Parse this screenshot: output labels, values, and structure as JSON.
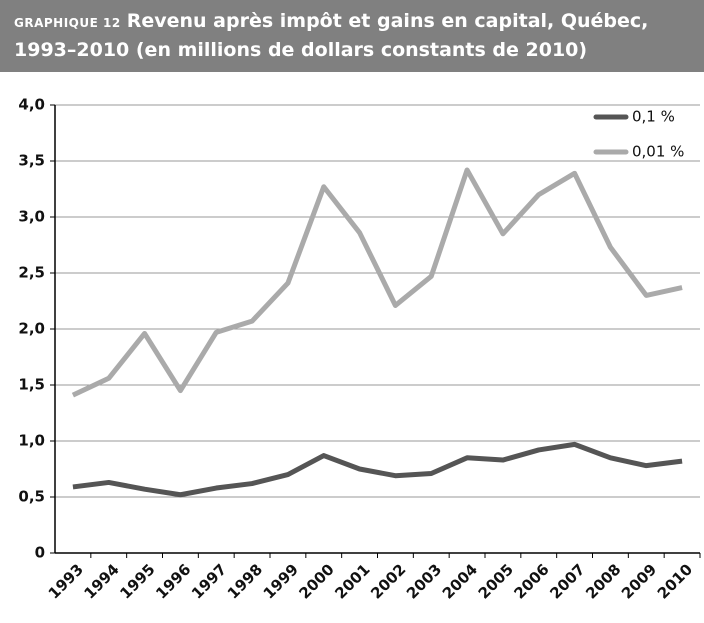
{
  "chart_data": {
    "type": "line",
    "label": "GRAPHIQUE 12",
    "title": "Revenu après impôt et gains en capital, Québec, 1993–2010 (en millions de dollars constants de 2010)",
    "categories": [
      "1993",
      "1994",
      "1995",
      "1996",
      "1997",
      "1998",
      "1999",
      "2000",
      "2001",
      "2002",
      "2003",
      "2004",
      "2005",
      "2006",
      "2007",
      "2008",
      "2009",
      "2010"
    ],
    "series": [
      {
        "name": "0,1 %",
        "color": "#555555",
        "values": [
          0.59,
          0.63,
          0.57,
          0.52,
          0.58,
          0.62,
          0.7,
          0.87,
          0.75,
          0.69,
          0.71,
          0.85,
          0.83,
          0.92,
          0.97,
          0.85,
          0.78,
          0.82
        ]
      },
      {
        "name": "0,01 %",
        "color": "#aaaaaa",
        "values": [
          1.41,
          1.56,
          1.96,
          1.45,
          1.97,
          2.07,
          2.41,
          3.27,
          2.86,
          2.21,
          2.47,
          3.42,
          2.85,
          3.2,
          3.39,
          2.73,
          2.3,
          2.37
        ]
      }
    ],
    "ylim": [
      0,
      4
    ],
    "yticks": [
      0,
      {
        "value": 0.5,
        "label": "0,5"
      },
      {
        "value": 1,
        "label": "1,0"
      },
      {
        "value": 1.5,
        "label": "1,5"
      },
      {
        "value": 2,
        "label": "2,0"
      },
      {
        "value": 2.5,
        "label": "2,5"
      },
      {
        "value": 3,
        "label": "3,0"
      },
      {
        "value": 3.5,
        "label": "3,5"
      },
      {
        "value": 4,
        "label": "4,0"
      }
    ],
    "grid": true,
    "legend": "top-right"
  }
}
